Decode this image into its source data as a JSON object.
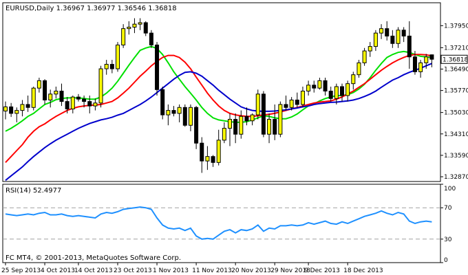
{
  "colors": {
    "background": "#ffffff",
    "frame": "#000000",
    "grid": "#c0c0c0",
    "bull_candle": "#ffff00",
    "bear_candle": "#000000",
    "candle_outline": "#000000",
    "ma_fast": "#00e000",
    "ma_medium": "#ff0000",
    "ma_slow": "#0000cc",
    "rsi_line": "#1e90ff",
    "rsi_level": "#a0a0a0",
    "price_tag_bg": "#ffffff"
  },
  "chart_data": [
    {
      "type": "candlestick",
      "title": "EURUSD,Daily  1.36967 1.36977 1.36546 1.36818",
      "ylim": [
        1.3271,
        1.3872
      ],
      "y_ticks": [
        "1.37950",
        "1.37210",
        "1.36490",
        "1.35770",
        "1.35030",
        "1.34310",
        "1.33590",
        "1.32870"
      ],
      "last_price": "1.36818",
      "x_ticks": [
        {
          "label": "25 Sep 2013",
          "index": 0
        },
        {
          "label": "4 Oct 2013",
          "index": 7
        },
        {
          "label": "14 Oct 2013",
          "index": 13
        },
        {
          "label": "23 Oct 2013",
          "index": 20
        },
        {
          "label": "1 Nov 2013",
          "index": 27
        },
        {
          "label": "11 Nov 2013",
          "index": 34
        },
        {
          "label": "20 Nov 2013",
          "index": 41
        },
        {
          "label": "29 Nov 2013",
          "index": 48
        },
        {
          "label": "9 Dec 2013",
          "index": 54
        },
        {
          "label": "18 Dec 2013",
          "index": 61
        }
      ],
      "candles": [
        {
          "o": 1.3508,
          "h": 1.354,
          "l": 1.348,
          "c": 1.3522
        },
        {
          "o": 1.3522,
          "h": 1.3535,
          "l": 1.3488,
          "c": 1.35
        },
        {
          "o": 1.35,
          "h": 1.352,
          "l": 1.347,
          "c": 1.351
        },
        {
          "o": 1.351,
          "h": 1.3545,
          "l": 1.349,
          "c": 1.353
        },
        {
          "o": 1.353,
          "h": 1.356,
          "l": 1.3505,
          "c": 1.352
        },
        {
          "o": 1.352,
          "h": 1.359,
          "l": 1.351,
          "c": 1.3585
        },
        {
          "o": 1.3585,
          "h": 1.362,
          "l": 1.357,
          "c": 1.361
        },
        {
          "o": 1.361,
          "h": 1.3615,
          "l": 1.353,
          "c": 1.3545
        },
        {
          "o": 1.3545,
          "h": 1.358,
          "l": 1.352,
          "c": 1.3565
        },
        {
          "o": 1.3565,
          "h": 1.359,
          "l": 1.355,
          "c": 1.3575
        },
        {
          "o": 1.3575,
          "h": 1.36,
          "l": 1.3525,
          "c": 1.354
        },
        {
          "o": 1.354,
          "h": 1.3555,
          "l": 1.35,
          "c": 1.3515
        },
        {
          "o": 1.3515,
          "h": 1.356,
          "l": 1.35,
          "c": 1.3555
        },
        {
          "o": 1.3555,
          "h": 1.3565,
          "l": 1.354,
          "c": 1.3548
        },
        {
          "o": 1.3548,
          "h": 1.356,
          "l": 1.352,
          "c": 1.354
        },
        {
          "o": 1.354,
          "h": 1.356,
          "l": 1.35,
          "c": 1.3525
        },
        {
          "o": 1.3525,
          "h": 1.355,
          "l": 1.351,
          "c": 1.3535
        },
        {
          "o": 1.3535,
          "h": 1.366,
          "l": 1.352,
          "c": 1.365
        },
        {
          "o": 1.365,
          "h": 1.368,
          "l": 1.363,
          "c": 1.3665
        },
        {
          "o": 1.3665,
          "h": 1.368,
          "l": 1.3635,
          "c": 1.365
        },
        {
          "o": 1.365,
          "h": 1.374,
          "l": 1.364,
          "c": 1.373
        },
        {
          "o": 1.373,
          "h": 1.38,
          "l": 1.372,
          "c": 1.3785
        },
        {
          "o": 1.3785,
          "h": 1.381,
          "l": 1.3765,
          "c": 1.379
        },
        {
          "o": 1.379,
          "h": 1.382,
          "l": 1.377,
          "c": 1.38
        },
        {
          "o": 1.38,
          "h": 1.382,
          "l": 1.378,
          "c": 1.3805
        },
        {
          "o": 1.3805,
          "h": 1.381,
          "l": 1.376,
          "c": 1.377
        },
        {
          "o": 1.377,
          "h": 1.378,
          "l": 1.372,
          "c": 1.373
        },
        {
          "o": 1.373,
          "h": 1.374,
          "l": 1.356,
          "c": 1.358
        },
        {
          "o": 1.358,
          "h": 1.359,
          "l": 1.348,
          "c": 1.3495
        },
        {
          "o": 1.3495,
          "h": 1.353,
          "l": 1.346,
          "c": 1.351
        },
        {
          "o": 1.351,
          "h": 1.3525,
          "l": 1.349,
          "c": 1.35
        },
        {
          "o": 1.35,
          "h": 1.353,
          "l": 1.347,
          "c": 1.352
        },
        {
          "o": 1.352,
          "h": 1.353,
          "l": 1.3455,
          "c": 1.346
        },
        {
          "o": 1.346,
          "h": 1.353,
          "l": 1.344,
          "c": 1.352
        },
        {
          "o": 1.352,
          "h": 1.3525,
          "l": 1.338,
          "c": 1.34
        },
        {
          "o": 1.34,
          "h": 1.342,
          "l": 1.33,
          "c": 1.334
        },
        {
          "o": 1.334,
          "h": 1.339,
          "l": 1.331,
          "c": 1.3355
        },
        {
          "o": 1.3355,
          "h": 1.336,
          "l": 1.332,
          "c": 1.3335
        },
        {
          "o": 1.3335,
          "h": 1.3445,
          "l": 1.3325,
          "c": 1.341
        },
        {
          "o": 1.341,
          "h": 1.347,
          "l": 1.34,
          "c": 1.345
        },
        {
          "o": 1.345,
          "h": 1.35,
          "l": 1.339,
          "c": 1.348
        },
        {
          "o": 1.348,
          "h": 1.35,
          "l": 1.34,
          "c": 1.343
        },
        {
          "o": 1.343,
          "h": 1.351,
          "l": 1.3415,
          "c": 1.349
        },
        {
          "o": 1.349,
          "h": 1.352,
          "l": 1.346,
          "c": 1.3475
        },
        {
          "o": 1.3475,
          "h": 1.35,
          "l": 1.346,
          "c": 1.3495
        },
        {
          "o": 1.3495,
          "h": 1.358,
          "l": 1.348,
          "c": 1.3565
        },
        {
          "o": 1.3565,
          "h": 1.3575,
          "l": 1.342,
          "c": 1.343
        },
        {
          "o": 1.343,
          "h": 1.35,
          "l": 1.34,
          "c": 1.348
        },
        {
          "o": 1.348,
          "h": 1.353,
          "l": 1.341,
          "c": 1.343
        },
        {
          "o": 1.343,
          "h": 1.354,
          "l": 1.342,
          "c": 1.353
        },
        {
          "o": 1.353,
          "h": 1.356,
          "l": 1.351,
          "c": 1.352
        },
        {
          "o": 1.352,
          "h": 1.3555,
          "l": 1.351,
          "c": 1.3545
        },
        {
          "o": 1.3545,
          "h": 1.357,
          "l": 1.352,
          "c": 1.353
        },
        {
          "o": 1.353,
          "h": 1.359,
          "l": 1.352,
          "c": 1.3575
        },
        {
          "o": 1.3575,
          "h": 1.361,
          "l": 1.356,
          "c": 1.3595
        },
        {
          "o": 1.3595,
          "h": 1.361,
          "l": 1.357,
          "c": 1.3585
        },
        {
          "o": 1.3585,
          "h": 1.362,
          "l": 1.358,
          "c": 1.361
        },
        {
          "o": 1.361,
          "h": 1.362,
          "l": 1.356,
          "c": 1.3575
        },
        {
          "o": 1.3575,
          "h": 1.359,
          "l": 1.354,
          "c": 1.355
        },
        {
          "o": 1.355,
          "h": 1.36,
          "l": 1.353,
          "c": 1.359
        },
        {
          "o": 1.359,
          "h": 1.36,
          "l": 1.354,
          "c": 1.356
        },
        {
          "o": 1.356,
          "h": 1.361,
          "l": 1.354,
          "c": 1.36
        },
        {
          "o": 1.36,
          "h": 1.364,
          "l": 1.358,
          "c": 1.363
        },
        {
          "o": 1.363,
          "h": 1.368,
          "l": 1.362,
          "c": 1.367
        },
        {
          "o": 1.367,
          "h": 1.372,
          "l": 1.366,
          "c": 1.371
        },
        {
          "o": 1.371,
          "h": 1.374,
          "l": 1.369,
          "c": 1.3725
        },
        {
          "o": 1.3725,
          "h": 1.378,
          "l": 1.371,
          "c": 1.377
        },
        {
          "o": 1.377,
          "h": 1.38,
          "l": 1.375,
          "c": 1.3785
        },
        {
          "o": 1.3785,
          "h": 1.381,
          "l": 1.3745,
          "c": 1.376
        },
        {
          "o": 1.376,
          "h": 1.378,
          "l": 1.372,
          "c": 1.3735
        },
        {
          "o": 1.3735,
          "h": 1.379,
          "l": 1.372,
          "c": 1.378
        },
        {
          "o": 1.378,
          "h": 1.379,
          "l": 1.374,
          "c": 1.376
        },
        {
          "o": 1.376,
          "h": 1.381,
          "l": 1.365,
          "c": 1.369
        },
        {
          "o": 1.369,
          "h": 1.371,
          "l": 1.363,
          "c": 1.364
        },
        {
          "o": 1.364,
          "h": 1.368,
          "l": 1.362,
          "c": 1.367
        },
        {
          "o": 1.367,
          "h": 1.37,
          "l": 1.365,
          "c": 1.369
        },
        {
          "o": 1.3697,
          "h": 1.3698,
          "l": 1.3655,
          "c": 1.3682
        }
      ],
      "series": [
        {
          "key": "ma_fast",
          "values": [
            1.344,
            1.345,
            1.3462,
            1.3475,
            1.349,
            1.35,
            1.3515,
            1.353,
            1.3537,
            1.3546,
            1.355,
            1.3552,
            1.3552,
            1.3552,
            1.355,
            1.3548,
            1.3548,
            1.3555,
            1.3568,
            1.3585,
            1.3608,
            1.3635,
            1.3662,
            1.3688,
            1.3712,
            1.372,
            1.3725,
            1.3718,
            1.3698,
            1.367,
            1.364,
            1.3615,
            1.359,
            1.3568,
            1.3545,
            1.352,
            1.35,
            1.3485,
            1.3478,
            1.3475,
            1.3472,
            1.347,
            1.347,
            1.3472,
            1.3478,
            1.3485,
            1.3492,
            1.349,
            1.3485,
            1.3482,
            1.3482,
            1.3488,
            1.3498,
            1.3512,
            1.3525,
            1.3532,
            1.3542,
            1.355,
            1.3555,
            1.356,
            1.356,
            1.3563,
            1.357,
            1.3582,
            1.3598,
            1.362,
            1.3645,
            1.3668,
            1.3688,
            1.3698,
            1.3705,
            1.3708,
            1.3705,
            1.3698,
            1.3692,
            1.369,
            1.3688
          ]
        },
        {
          "key": "ma_medium",
          "values": [
            1.3335,
            1.3355,
            1.3375,
            1.3395,
            1.342,
            1.344,
            1.3455,
            1.3465,
            1.3478,
            1.349,
            1.35,
            1.351,
            1.3517,
            1.3522,
            1.3525,
            1.3527,
            1.3528,
            1.353,
            1.3535,
            1.354,
            1.3552,
            1.3568,
            1.3585,
            1.3605,
            1.3625,
            1.3642,
            1.366,
            1.3675,
            1.3688,
            1.3695,
            1.3695,
            1.3688,
            1.3672,
            1.365,
            1.3622,
            1.3595,
            1.3568,
            1.3545,
            1.3525,
            1.351,
            1.35,
            1.3495,
            1.3492,
            1.349,
            1.349,
            1.3492,
            1.3495,
            1.3497,
            1.35,
            1.3505,
            1.351,
            1.3515,
            1.352,
            1.3525,
            1.353,
            1.3535,
            1.3538,
            1.354,
            1.3542,
            1.3548,
            1.3555,
            1.3565,
            1.3575,
            1.3588,
            1.36,
            1.3615,
            1.363,
            1.3645,
            1.3658,
            1.367,
            1.368,
            1.3688,
            1.3695,
            1.3698,
            1.3698,
            1.3697,
            1.3693
          ]
        },
        {
          "key": "ma_slow",
          "values": [
            1.3275,
            1.329,
            1.3305,
            1.332,
            1.3338,
            1.3355,
            1.337,
            1.3385,
            1.3398,
            1.341,
            1.342,
            1.343,
            1.344,
            1.345,
            1.3458,
            1.3466,
            1.3472,
            1.3478,
            1.3482,
            1.3487,
            1.3494,
            1.35,
            1.351,
            1.352,
            1.353,
            1.3542,
            1.3555,
            1.357,
            1.3585,
            1.36,
            1.3615,
            1.3628,
            1.3638,
            1.364,
            1.3635,
            1.3625,
            1.361,
            1.3595,
            1.3578,
            1.3563,
            1.3548,
            1.3535,
            1.3522,
            1.3515,
            1.351,
            1.3508,
            1.3507,
            1.3507,
            1.3508,
            1.351,
            1.3512,
            1.3515,
            1.3518,
            1.3522,
            1.3525,
            1.353,
            1.3533,
            1.3535,
            1.3537,
            1.3538,
            1.354,
            1.3542,
            1.3545,
            1.355,
            1.3557,
            1.3565,
            1.3575,
            1.3588,
            1.36,
            1.3612,
            1.362,
            1.363,
            1.3638,
            1.3645,
            1.3652,
            1.366,
            1.3668
          ]
        }
      ]
    },
    {
      "type": "line",
      "title": "RSI(14) 52.4977",
      "ylim": [
        0,
        100
      ],
      "y_ticks": [
        "100",
        "70",
        "30",
        "0"
      ],
      "levels": [
        70,
        30
      ],
      "series": [
        {
          "key": "rsi",
          "values": [
            62,
            61,
            60,
            61,
            62,
            61,
            63,
            64,
            61,
            61,
            62,
            60,
            59,
            60,
            59,
            58,
            57,
            62,
            64,
            63,
            65,
            68,
            69,
            70,
            71,
            70,
            68,
            57,
            48,
            44,
            43,
            44,
            41,
            44,
            34,
            30,
            31,
            30,
            35,
            40,
            42,
            38,
            42,
            41,
            43,
            48,
            40,
            44,
            43,
            47,
            47,
            48,
            47,
            48,
            51,
            49,
            51,
            53,
            50,
            49,
            52,
            50,
            53,
            56,
            59,
            61,
            63,
            66,
            63,
            61,
            64,
            62,
            53,
            50,
            52,
            53,
            52
          ]
        }
      ]
    }
  ],
  "footer": {
    "copyright": "FC MT4, © 2001-2013, MetaQuotes Software Corp."
  }
}
